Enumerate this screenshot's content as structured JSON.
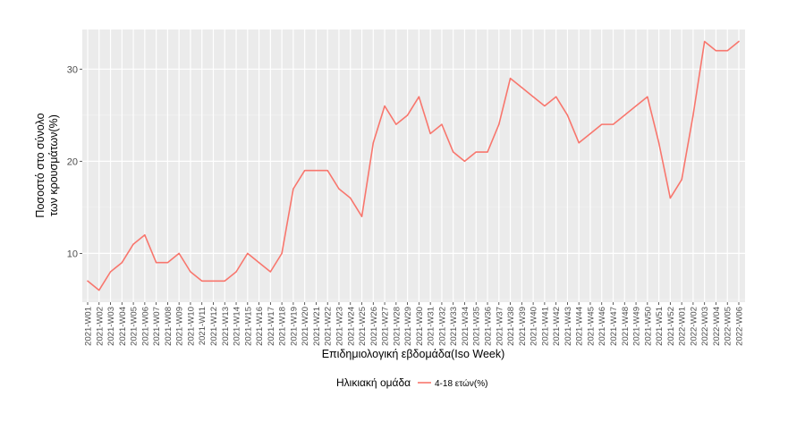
{
  "chart_data": {
    "type": "line",
    "xlabel": "Επιδημιολογική εβδομάδα(Iso Week)",
    "ylabel_lines": [
      "Ποσοστό στο σύνολο",
      "των κρουσμάτων(%)"
    ],
    "yticks": [
      10,
      20,
      30
    ],
    "ylim": [
      4.7,
      34.3
    ],
    "grid": true,
    "legend": {
      "title": "Ηλικιακή ομάδα",
      "placement": "bottom"
    },
    "categories": [
      "2021-W01",
      "2021-W02",
      "2021-W03",
      "2021-W04",
      "2021-W05",
      "2021-W06",
      "2021-W07",
      "2021-W08",
      "2021-W09",
      "2021-W10",
      "2021-W11",
      "2021-W12",
      "2021-W13",
      "2021-W14",
      "2021-W15",
      "2021-W16",
      "2021-W17",
      "2021-W18",
      "2021-W19",
      "2021-W20",
      "2021-W21",
      "2021-W22",
      "2021-W23",
      "2021-W24",
      "2021-W25",
      "2021-W26",
      "2021-W27",
      "2021-W28",
      "2021-W29",
      "2021-W30",
      "2021-W31",
      "2021-W32",
      "2021-W33",
      "2021-W34",
      "2021-W35",
      "2021-W36",
      "2021-W37",
      "2021-W38",
      "2021-W39",
      "2021-W40",
      "2021-W41",
      "2021-W42",
      "2021-W43",
      "2021-W44",
      "2021-W45",
      "2021-W46",
      "2021-W47",
      "2021-W48",
      "2021-W49",
      "2021-W50",
      "2021-W51",
      "2021-W52",
      "2022-W01",
      "2022-W02",
      "2022-W03",
      "2022-W04",
      "2022-W05",
      "2022-W06"
    ],
    "series": [
      {
        "name": "4-18 ετών(%)",
        "color": "#f8766d",
        "values": [
          7,
          6,
          8,
          9,
          11,
          12,
          9,
          9,
          10,
          8,
          7,
          7,
          7,
          8,
          10,
          9,
          8,
          10,
          17,
          19,
          19,
          19,
          17,
          16,
          14,
          22,
          26,
          24,
          25,
          27,
          23,
          24,
          21,
          20,
          21,
          21,
          24,
          29,
          28,
          27,
          26,
          27,
          25,
          22,
          23,
          24,
          24,
          25,
          26,
          27,
          22,
          16,
          18,
          25,
          33,
          32,
          32,
          33
        ]
      }
    ]
  }
}
